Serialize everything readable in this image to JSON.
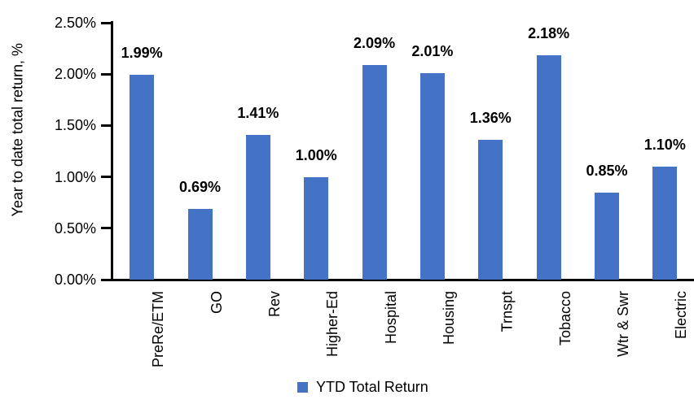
{
  "page": {
    "background_color": "#FFFFFF"
  },
  "chart_data": {
    "type": "bar",
    "title": "",
    "xlabel": "",
    "ylabel": "Year to date total return, %",
    "categories": [
      "PreRe/ETM",
      "GO",
      "Rev",
      "Higher-Ed",
      "Hospital",
      "Housing",
      "Trnspt",
      "Tobacco",
      "Wtr & Swr",
      "Electric"
    ],
    "series": [
      {
        "name": "YTD Total Return",
        "values": [
          1.99,
          0.69,
          1.41,
          1.0,
          2.09,
          2.01,
          1.36,
          2.18,
          0.85,
          1.1
        ],
        "value_labels": [
          "1.99%",
          "0.69%",
          "1.41%",
          "1.00%",
          "2.09%",
          "2.01%",
          "1.36%",
          "2.18%",
          "0.85%",
          "1.10%"
        ],
        "color": "#4472C4"
      }
    ],
    "ylim": [
      0,
      2.5
    ],
    "yticks": [
      {
        "value": 0.0,
        "label": "0.00%"
      },
      {
        "value": 0.5,
        "label": "0.50%"
      },
      {
        "value": 1.0,
        "label": "1.00%"
      },
      {
        "value": 1.5,
        "label": "1.50%"
      },
      {
        "value": 2.0,
        "label": "2.00%"
      },
      {
        "value": 2.5,
        "label": "2.50%"
      }
    ],
    "grid": false,
    "legend": {
      "position": "bottom-center",
      "entries": [
        {
          "label": "YTD Total Return",
          "color": "#4472C4"
        }
      ]
    },
    "colors": {
      "bar": "#4472C4",
      "axis": "#000000",
      "text": "#000000"
    }
  }
}
